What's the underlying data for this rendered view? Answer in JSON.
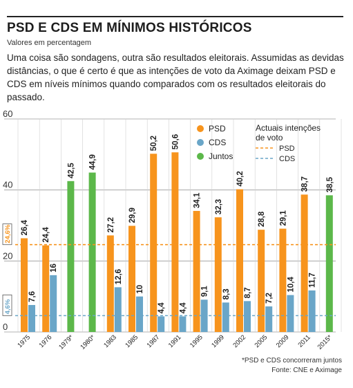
{
  "header": {
    "title": "PSD E CDS EM MÍNIMOS HISTÓRICOS",
    "subtitle": "Valores em percentagem",
    "intro": "Uma coisa são sondagens, outra são resultados eleitorais. Assumidas as devidas distâncias, o que é certo é que as intenções de voto da Aximage deixam PSD e CDS em níveis mínimos quando comparados com os resultados eleitorais do passado."
  },
  "footer": {
    "note": "*PSD e CDS concorreram juntos",
    "source": "Fonte: CNE e Aximage"
  },
  "colors": {
    "psd": "#f7941d",
    "cds": "#6aa6c8",
    "juntos": "#5cb84a",
    "grid": "#9a9a9a"
  },
  "chart_data": {
    "type": "bar",
    "categories": [
      "1975",
      "1976",
      "1979*",
      "1980*",
      "1983",
      "1985",
      "1987",
      "1991",
      "1995",
      "1999",
      "2002",
      "2005",
      "2009",
      "2011",
      "2015*"
    ],
    "series": [
      {
        "name": "PSD",
        "values": [
          26.4,
          24.4,
          null,
          null,
          27.2,
          29.9,
          50.2,
          50.6,
          34.1,
          32.3,
          40.2,
          28.8,
          29.1,
          38.7,
          null
        ]
      },
      {
        "name": "CDS",
        "values": [
          7.6,
          16,
          null,
          null,
          12.6,
          10,
          4.4,
          4.4,
          9.1,
          8.3,
          8.7,
          7.2,
          10.4,
          11.7,
          null
        ]
      },
      {
        "name": "Juntos",
        "values": [
          null,
          null,
          42.5,
          44.9,
          null,
          null,
          null,
          null,
          null,
          null,
          null,
          null,
          null,
          null,
          38.5
        ]
      }
    ],
    "data_labels": [
      [
        "26,4",
        "24,4",
        null,
        null,
        "27,2",
        "29,9",
        "50,2",
        "50,6",
        "34,1",
        "32,3",
        "40,2",
        "28,8",
        "29,1",
        "38,7",
        null
      ],
      [
        "7,6",
        "16",
        null,
        null,
        "12,6",
        "10",
        "4,4",
        "4,4",
        "9,1",
        "8,3",
        "8,7",
        "7,2",
        "10,4",
        "11,7",
        null
      ],
      [
        null,
        null,
        "42,5",
        "44,9",
        null,
        null,
        null,
        null,
        null,
        null,
        null,
        null,
        null,
        null,
        "38,5"
      ]
    ],
    "ylim": [
      0,
      60
    ],
    "yticks": [
      "0",
      "20",
      "40",
      "60"
    ],
    "grid": true,
    "reference_lines": [
      {
        "name": "PSD",
        "value": 24.6,
        "label": "24,6%"
      },
      {
        "name": "CDS",
        "value": 4.6,
        "label": "4,6%"
      }
    ],
    "legend": {
      "position": "top-right",
      "items": [
        "PSD",
        "CDS",
        "Juntos"
      ],
      "lines_title": "Actuais intenções de voto",
      "lines": [
        "PSD",
        "CDS"
      ]
    }
  }
}
